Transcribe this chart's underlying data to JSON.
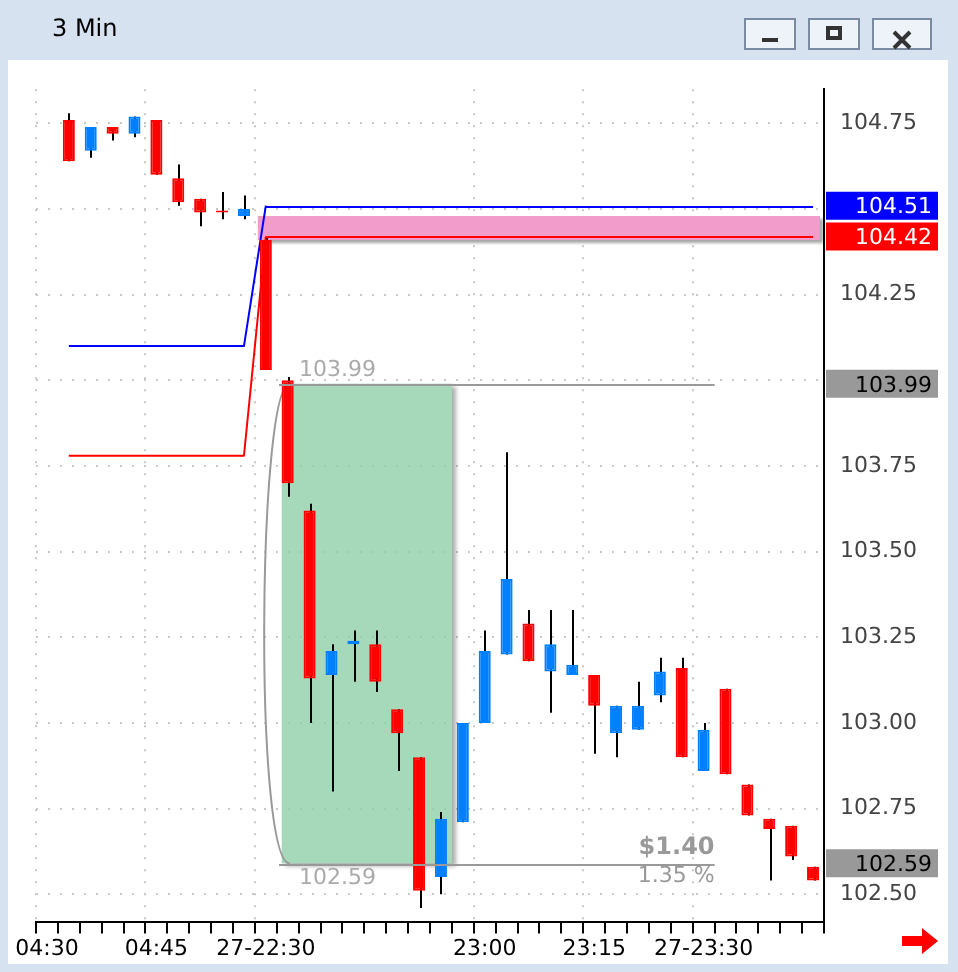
{
  "chart_data": {
    "type": "candlestick",
    "title": "3 Min",
    "categories": [
      "04:30",
      null,
      null,
      null,
      null,
      "04:45",
      null,
      null,
      null,
      null,
      "27-22:30",
      null,
      null,
      null,
      null,
      null,
      null,
      null,
      null,
      null,
      "23:00",
      null,
      null,
      null,
      null,
      "23:15",
      null,
      null,
      null,
      null,
      "27-23:30",
      null,
      null,
      null,
      null,
      null
    ],
    "ohlc": [
      null,
      [
        104.76,
        104.78,
        104.64,
        104.64
      ],
      [
        104.67,
        104.74,
        104.65,
        104.74
      ],
      [
        104.74,
        104.74,
        104.7,
        104.72
      ],
      [
        104.72,
        104.77,
        104.71,
        104.77
      ],
      [
        104.76,
        104.76,
        104.6,
        104.6
      ],
      [
        104.59,
        104.63,
        104.51,
        104.52
      ],
      [
        104.53,
        104.53,
        104.45,
        104.49
      ],
      [
        104.49,
        104.55,
        104.47,
        104.49
      ],
      [
        104.48,
        104.54,
        104.47,
        104.5
      ],
      [
        104.41,
        104.42,
        104.03,
        104.03
      ],
      [
        104.0,
        104.01,
        103.66,
        103.7
      ],
      [
        103.62,
        103.64,
        103.0,
        103.13
      ],
      [
        103.14,
        103.23,
        102.8,
        103.21
      ],
      [
        103.23,
        103.27,
        103.12,
        103.24
      ],
      [
        103.23,
        103.27,
        103.09,
        103.12
      ],
      [
        103.04,
        103.04,
        102.86,
        102.97
      ],
      [
        102.9,
        102.9,
        102.46,
        102.51
      ],
      [
        102.55,
        102.74,
        102.5,
        102.72
      ],
      [
        102.71,
        103.0,
        102.71,
        103.0
      ],
      [
        103.0,
        103.27,
        103.0,
        103.21
      ],
      [
        103.2,
        103.79,
        103.2,
        103.42
      ],
      [
        103.29,
        103.33,
        103.18,
        103.18
      ],
      [
        103.15,
        103.33,
        103.03,
        103.23
      ],
      [
        103.14,
        103.33,
        103.14,
        103.17
      ],
      [
        103.14,
        103.14,
        102.91,
        103.05
      ],
      [
        102.97,
        103.05,
        102.9,
        103.05
      ],
      [
        102.98,
        103.12,
        102.98,
        103.05
      ],
      [
        103.08,
        103.19,
        103.06,
        103.15
      ],
      [
        103.16,
        103.19,
        102.9,
        102.9
      ],
      [
        102.86,
        103.0,
        102.86,
        102.98
      ],
      [
        103.1,
        103.1,
        102.85,
        102.85
      ],
      [
        102.82,
        102.82,
        102.73,
        102.73
      ],
      [
        102.72,
        102.72,
        102.54,
        102.69
      ],
      [
        102.7,
        102.7,
        102.6,
        102.61
      ],
      [
        102.58,
        102.58,
        102.54,
        102.54
      ]
    ],
    "colors": [
      "#ff0000",
      "#ff0000",
      "#0080ff",
      "#ff0000",
      "#0080ff",
      "#ff0000",
      "#ff0000",
      "#ff0000",
      "#ff0000",
      "#0080ff",
      "#ff0000",
      "#ff0000",
      "#ff0000",
      "#0080ff",
      "#0080ff",
      "#ff0000",
      "#ff0000",
      "#ff0000",
      "#0080ff",
      "#0080ff",
      "#0080ff",
      "#0080ff",
      "#ff0000",
      "#0080ff",
      "#0080ff",
      "#ff0000",
      "#0080ff",
      "#0080ff",
      "#0080ff",
      "#ff0000",
      "#0080ff",
      "#ff0000",
      "#ff0000",
      "#ff0000",
      "#ff0000",
      "#ff0000"
    ],
    "series": [
      {
        "type": "line",
        "color": "#0000ff",
        "values": [
          null,
          104.1,
          104.1,
          104.1,
          104.1,
          104.1,
          104.1,
          104.1,
          104.1,
          104.1,
          104.51,
          null,
          null,
          null,
          null,
          null,
          null,
          null,
          null,
          null,
          null,
          null,
          null,
          null,
          null,
          null,
          null,
          null,
          null,
          null,
          null,
          null,
          null,
          null,
          null,
          null
        ]
      },
      {
        "type": "line",
        "color": "#ff0000",
        "values": [
          null,
          103.78,
          103.78,
          103.78,
          103.78,
          103.78,
          103.78,
          103.78,
          103.78,
          103.78,
          104.42,
          null,
          null,
          null,
          null,
          null,
          null,
          null,
          null,
          null,
          null,
          null,
          null,
          null,
          null,
          null,
          null,
          null,
          null,
          null,
          null,
          null,
          null,
          null,
          null,
          null
        ]
      }
    ],
    "ylim": [
      102.42,
      104.85
    ],
    "yticks": [
      {
        "value": 102.5,
        "label": "102.50"
      },
      {
        "value": 102.75,
        "label": "102.75"
      },
      {
        "value": 103,
        "label": "103.00"
      },
      {
        "value": 103.25,
        "label": "103.25"
      },
      {
        "value": 103.5,
        "label": "103.50"
      },
      {
        "value": 103.75,
        "label": "103.75"
      },
      {
        "value": 104,
        "label": null
      },
      {
        "value": 104.25,
        "label": "104.25"
      },
      {
        "value": 104.5,
        "label": null
      },
      {
        "value": 104.75,
        "label": "104.75"
      }
    ],
    "ref_lines": [
      {
        "axis": "y",
        "value": 104.51,
        "label": "104.51",
        "color": "#0000ff"
      },
      {
        "axis": "y",
        "value": 104.42,
        "label": "104.42",
        "color": "#ff0000"
      },
      {
        "axis": "y",
        "value": 103.99,
        "label": "103.99",
        "color": "#999999"
      },
      {
        "axis": "y",
        "value": 102.59,
        "label": "102.59",
        "color": "#999999"
      }
    ],
    "bands": [
      {
        "axis": "y",
        "from": 104.41,
        "to": 104.48,
        "color": "#f29ccb"
      },
      {
        "axis": "y",
        "from": 102.59,
        "to": 103.99,
        "color": "#8fd0aa"
      }
    ],
    "annotations": [
      "$1.40",
      "1.35 %"
    ],
    "grid": true
  }
}
